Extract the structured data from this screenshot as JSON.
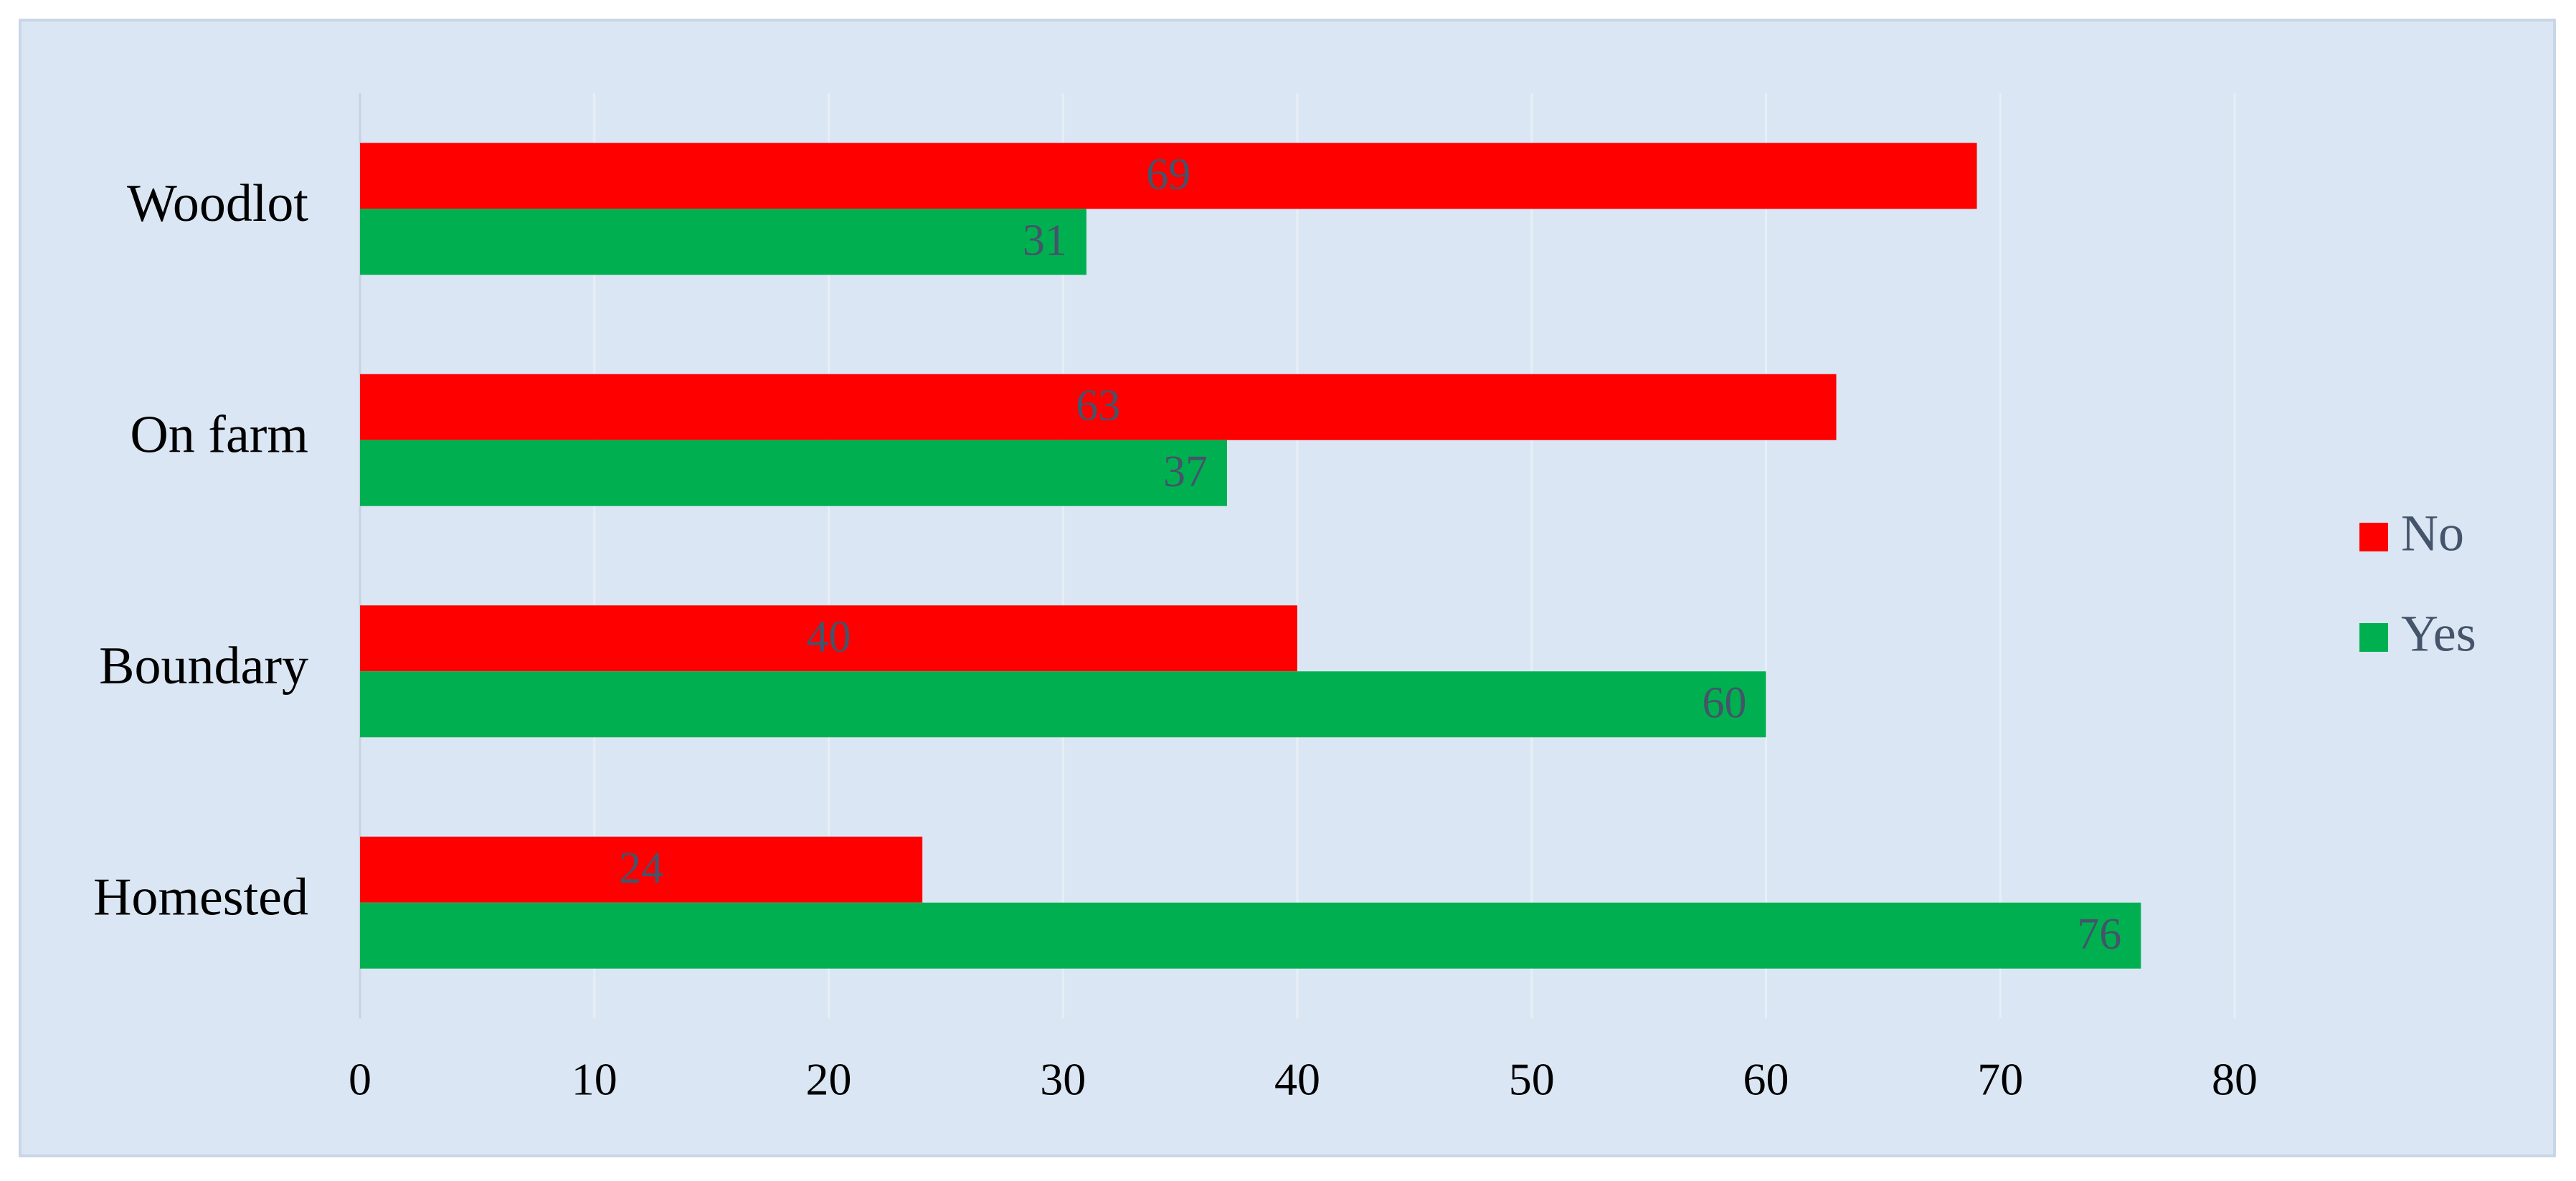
{
  "chart_data": {
    "type": "hbar",
    "categories": [
      "Woodlot",
      "On farm",
      "Boundary",
      "Homested"
    ],
    "series": [
      {
        "name": "No",
        "color": "#ff0000",
        "values": [
          69,
          63,
          40,
          24
        ]
      },
      {
        "name": "Yes",
        "color": "#00b050",
        "values": [
          31,
          37,
          60,
          76
        ]
      }
    ],
    "xlim": [
      0,
      80
    ],
    "xticks": [
      0,
      10,
      20,
      30,
      40,
      50,
      60,
      70,
      80
    ],
    "grid": true,
    "legend": "right"
  }
}
